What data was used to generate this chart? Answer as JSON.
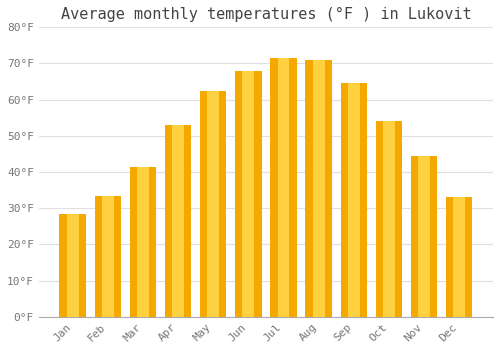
{
  "title": "Average monthly temperatures (°F ) in Lukovit",
  "months": [
    "Jan",
    "Feb",
    "Mar",
    "Apr",
    "May",
    "Jun",
    "Jul",
    "Aug",
    "Sep",
    "Oct",
    "Nov",
    "Dec"
  ],
  "values": [
    28.5,
    33.5,
    41.5,
    53,
    62.5,
    68,
    71.5,
    71,
    64.5,
    54,
    44.5,
    33
  ],
  "bar_color_outer": "#F5A800",
  "bar_color_inner": "#FFD040",
  "background_color": "#FFFFFF",
  "plot_bg_color": "#FFFFFF",
  "grid_color": "#E0E0E0",
  "text_color": "#777777",
  "title_color": "#444444",
  "ylim": [
    0,
    80
  ],
  "yticks": [
    0,
    10,
    20,
    30,
    40,
    50,
    60,
    70,
    80
  ],
  "ytick_labels": [
    "0°F",
    "10°F",
    "20°F",
    "30°F",
    "40°F",
    "50°F",
    "60°F",
    "70°F",
    "80°F"
  ],
  "title_fontsize": 11,
  "tick_fontsize": 8,
  "font_family": "monospace",
  "bar_width": 0.75
}
